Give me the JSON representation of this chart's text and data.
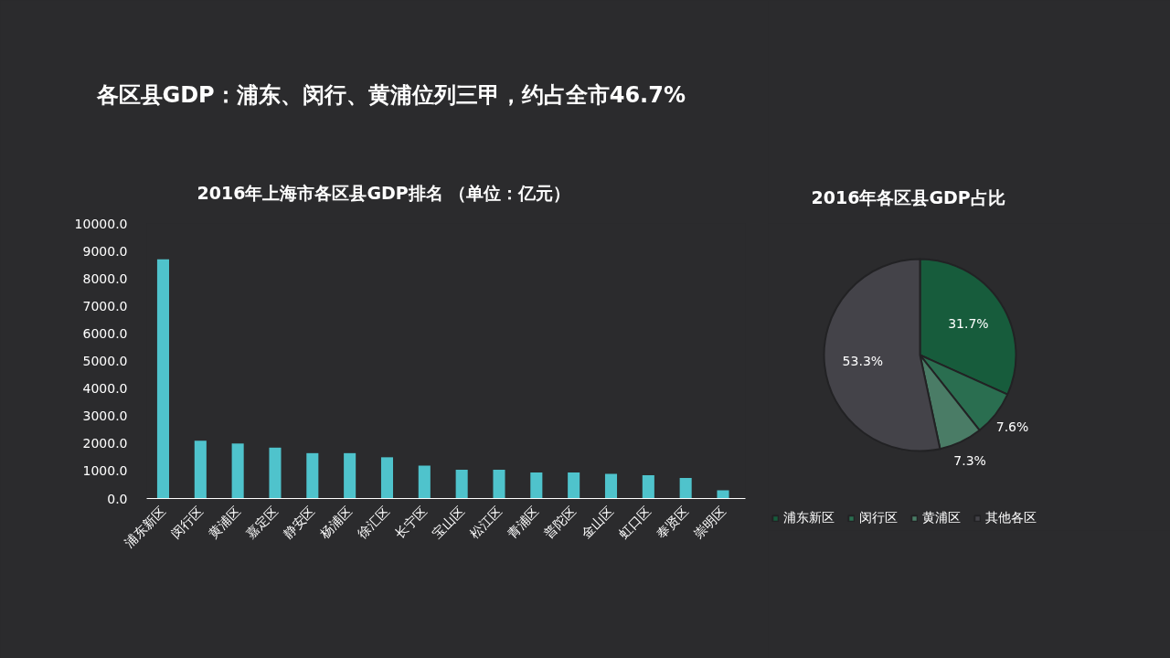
{
  "chart_data": [
    {
      "type": "bar",
      "title": "各区县GDP：浦东、闵行、黄浦位列三甲，约占全市46.7%",
      "subtitle": "2016年上海市各区县GDP排名 （单位：亿元）",
      "categories": [
        "浦东新区",
        "闵行区",
        "黄浦区",
        "嘉定区",
        "静安区",
        "杨浦区",
        "徐汇区",
        "长宁区",
        "宝山区",
        "松江区",
        "青浦区",
        "普陀区",
        "金山区",
        "虹口区",
        "奉贤区",
        "崇明区"
      ],
      "values": [
        8700,
        2100,
        2000,
        1850,
        1650,
        1650,
        1500,
        1200,
        1050,
        1050,
        950,
        950,
        900,
        850,
        750,
        300
      ],
      "color": "#4fc3cc",
      "ylim": [
        0,
        10000
      ],
      "yticks": [
        {
          "value": 0,
          "label": "0.0"
        },
        {
          "value": 1000,
          "label": "1000.0"
        },
        {
          "value": 2000,
          "label": "2000.0"
        },
        {
          "value": 3000,
          "label": "3000.0"
        },
        {
          "value": 4000,
          "label": "4000.0"
        },
        {
          "value": 5000,
          "label": "5000.0"
        },
        {
          "value": 6000,
          "label": "6000.0"
        },
        {
          "value": 7000,
          "label": "7000.0"
        },
        {
          "value": 8000,
          "label": "8000.0"
        },
        {
          "value": 9000,
          "label": "9000.0"
        },
        {
          "value": 10000,
          "label": "10000.0"
        }
      ]
    },
    {
      "type": "pie",
      "title": "2016年各区县GDP占比",
      "categories": [
        "浦东新区",
        "闵行区",
        "黄浦区",
        "其他各区"
      ],
      "values": [
        31.7,
        7.6,
        7.3,
        53.3
      ],
      "value_labels": [
        "31.7%",
        "7.6%",
        "7.3%",
        "53.3%"
      ],
      "colors": [
        "#175c3c",
        "#2a6e50",
        "#4a7c66",
        "#444349"
      ],
      "legend": "bottom"
    }
  ]
}
